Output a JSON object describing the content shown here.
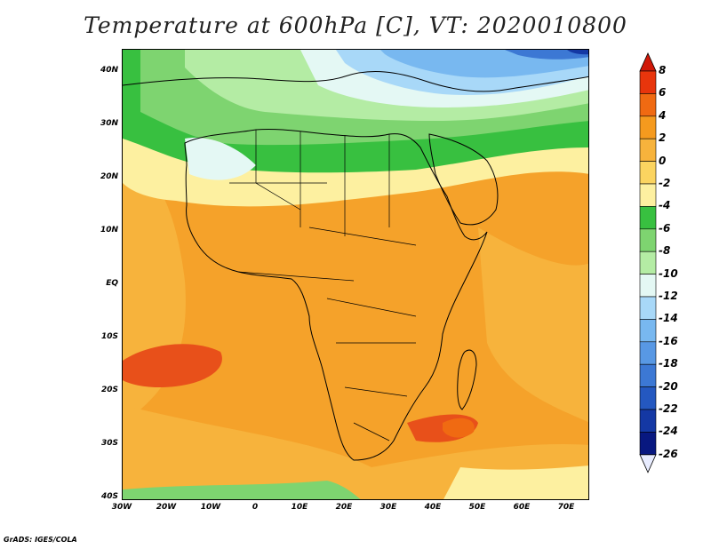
{
  "header": {
    "title": "Temperature at 600hPa [C], VT: 2020010800"
  },
  "footer": {
    "credit": "GrADS: IGES/COLA"
  },
  "axes": {
    "y_ticks": [
      "40N",
      "30N",
      "20N",
      "10N",
      "EQ",
      "10S",
      "20S",
      "30S",
      "40S"
    ],
    "x_ticks": [
      "30W",
      "20W",
      "10W",
      "0",
      "10E",
      "20E",
      "30E",
      "40E",
      "50E",
      "60E",
      "70E"
    ]
  },
  "colorbar": {
    "labels": [
      "8",
      "6",
      "4",
      "2",
      "0",
      "-2",
      "-4",
      "-6",
      "-8",
      "-10",
      "-12",
      "-14",
      "-16",
      "-18",
      "-20",
      "-22",
      "-24",
      "-26"
    ],
    "colors": [
      "#e8350c",
      "#f06a12",
      "#f59a1e",
      "#f7b33c",
      "#fbd460",
      "#fdf0a0",
      "#38c040",
      "#7ed470",
      "#b4eca4",
      "#e4f8f4",
      "#a8d8f8",
      "#78b8f0",
      "#5898e4",
      "#3c78d4",
      "#2458c0",
      "#1438a4",
      "#081880"
    ],
    "top_color": "#d01808",
    "bottom_color": "#e8ecff"
  },
  "map_colors": {
    "ocean_warm": "#f7b33c",
    "ocean_hot": "#f08a1a",
    "land": "#f5a22a",
    "hot_spot": "#e8501a",
    "cool_yellow": "#fdf0a0",
    "pale_yellow": "#fbe07a",
    "green_dark": "#38c040",
    "green_mid": "#7ed470",
    "green_light": "#b4eca4",
    "cyan_pale": "#e4f8f4",
    "blue_light": "#a8d8f8",
    "blue_mid": "#78b8f0",
    "blue_dark": "#3c78d4",
    "blue_deep": "#1438a4",
    "coast": "#000000"
  }
}
